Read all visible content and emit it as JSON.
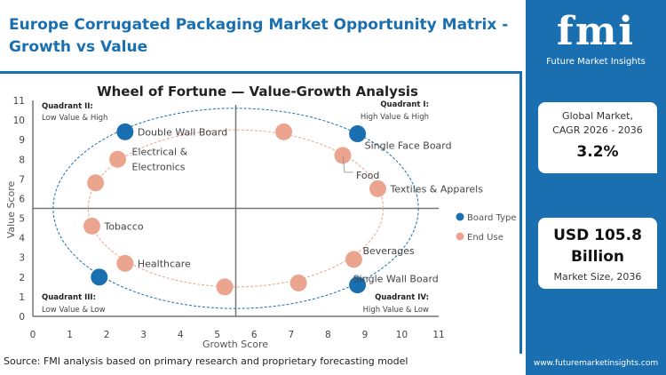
{
  "header": {
    "title": "Europe Corrugated Packaging Market Opportunity Matrix - Growth vs Value"
  },
  "chart_data": {
    "type": "scatter",
    "title": "Wheel of Fortune — Value-Growth Analysis",
    "xlabel": "Growth Score",
    "ylabel": "Value Score",
    "xlim": [
      0,
      11
    ],
    "ylim": [
      0,
      11
    ],
    "xticks": [
      0,
      1,
      2,
      3,
      4,
      5,
      6,
      7,
      8,
      9,
      10,
      11
    ],
    "yticks": [
      0,
      1,
      2,
      3,
      4,
      5,
      6,
      7,
      8,
      9,
      10,
      11
    ],
    "divider": {
      "x": 5.5,
      "y": 5.5
    },
    "grid": false,
    "legend_position": "right",
    "quadrants": [
      {
        "name": "Quadrant II:",
        "desc": "Low Value & High"
      },
      {
        "name": "Quadrant I:",
        "desc": "High Value & High"
      },
      {
        "name": "Quadrant III:",
        "desc": "Low Value & Low"
      },
      {
        "name": "Quadrant IV:",
        "desc": "High Value & Low"
      }
    ],
    "series": [
      {
        "name": "Board Type",
        "color": "#1a6fb0",
        "ellipse": {
          "cx": 5.5,
          "cy": 5.5,
          "rx": 4.95,
          "ry": 5.1
        },
        "points": [
          {
            "x": 2.5,
            "y": 9.4,
            "label": "Double Wall Board"
          },
          {
            "x": 8.8,
            "y": 9.3,
            "label": "Single Face Board"
          },
          {
            "x": 8.8,
            "y": 1.6,
            "label": "Single Wall Board"
          },
          {
            "x": 1.8,
            "y": 2.0,
            "label": ""
          }
        ]
      },
      {
        "name": "End Use",
        "color": "#eba58e",
        "ellipse": {
          "cx": 5.5,
          "cy": 5.5,
          "rx": 4.0,
          "ry": 4.0
        },
        "points": [
          {
            "x": 2.3,
            "y": 8.0,
            "label": "Electrical & Electronics"
          },
          {
            "x": 1.7,
            "y": 6.8,
            "label": ""
          },
          {
            "x": 1.6,
            "y": 4.6,
            "label": "Tobacco"
          },
          {
            "x": 2.5,
            "y": 2.7,
            "label": "Healthcare"
          },
          {
            "x": 5.2,
            "y": 1.5,
            "label": ""
          },
          {
            "x": 7.2,
            "y": 1.7,
            "label": ""
          },
          {
            "x": 8.7,
            "y": 2.9,
            "label": "Beverages"
          },
          {
            "x": 9.35,
            "y": 6.5,
            "label": "Textiles & Apparels"
          },
          {
            "x": 8.4,
            "y": 8.2,
            "label": "Food"
          },
          {
            "x": 6.8,
            "y": 9.4,
            "label": ""
          }
        ]
      }
    ]
  },
  "side": {
    "logo_big": "fmi",
    "logo_small": "Future Market Insights",
    "cagr_label1": "Global Market,",
    "cagr_label2": "CAGR 2026 - 2036",
    "cagr_value": "3.2%",
    "size_value1": "USD 105.8",
    "size_value2": "Billion",
    "size_label": "Market Size, 2036",
    "url": "www.futuremarketinsights.com"
  },
  "footer": {
    "source": "Source: FMI analysis based on primary research and proprietary forecasting model"
  }
}
